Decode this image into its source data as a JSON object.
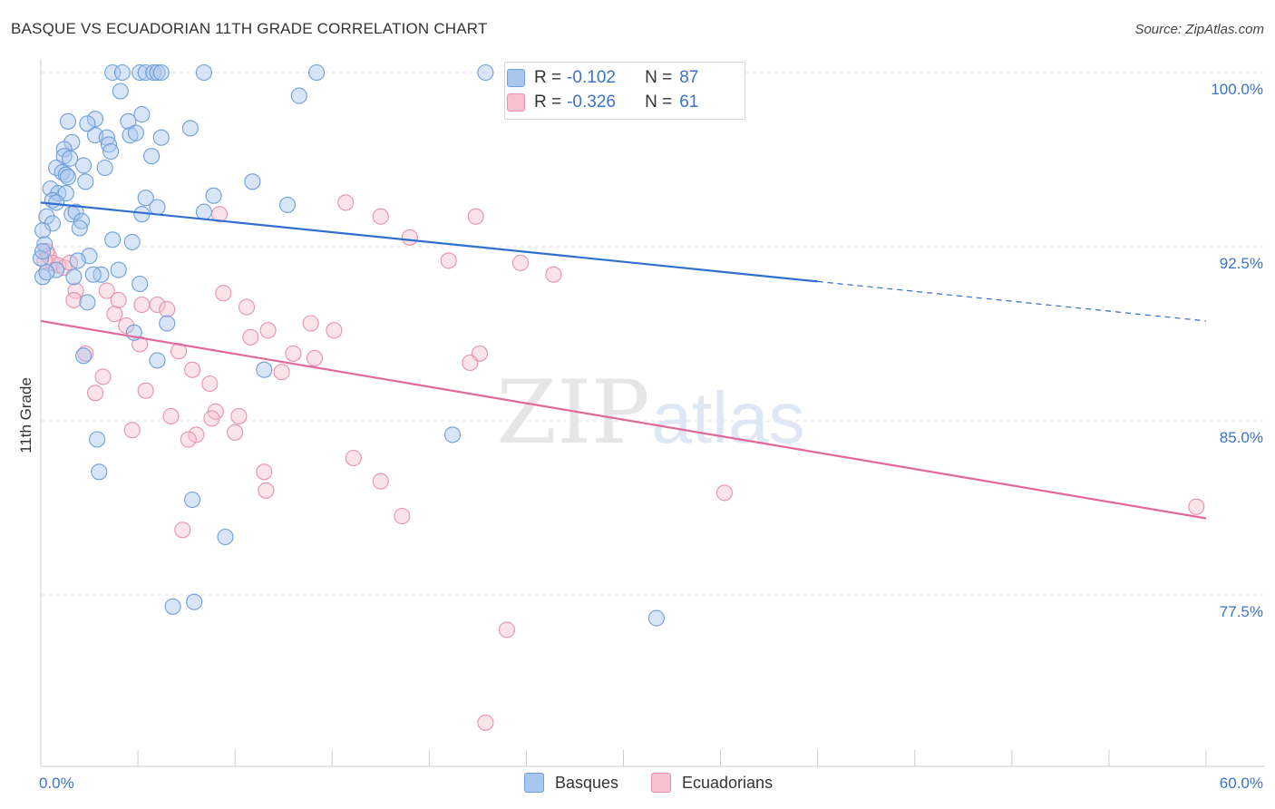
{
  "title": "BASQUE VS ECUADORIAN 11TH GRADE CORRELATION CHART",
  "source": "Source: ZipAtlas.com",
  "watermark": {
    "zip": "ZIP",
    "atlas": "atlas"
  },
  "colors": {
    "basque_fill": "#a9c6ee",
    "basque_stroke": "#6f9fdc",
    "basque_line": "#2f6fcf",
    "ecuador_fill": "#f6c0d0",
    "ecuador_stroke": "#e991ae",
    "ecuador_line": "#e2689a",
    "axis_label": "#3b73c8"
  },
  "legend_top": {
    "rows": [
      {
        "r_label": "R =",
        "r_value": "-0.102",
        "n_label": "N =",
        "n_value": "87",
        "series": "basque"
      },
      {
        "r_label": "R =",
        "r_value": "-0.326",
        "n_label": "N =",
        "n_value": "61",
        "series": "ecuador"
      }
    ]
  },
  "legend_bottom": {
    "items": [
      {
        "label": "Basques",
        "series": "basque"
      },
      {
        "label": "Ecuadorians",
        "series": "ecuador"
      }
    ]
  },
  "chart_data": {
    "type": "scatter",
    "title": "BASQUE VS ECUADORIAN 11TH GRADE CORRELATION CHART",
    "xlabel": "",
    "ylabel": "11th Grade",
    "xlim": [
      0,
      60
    ],
    "ylim": [
      70,
      100.8
    ],
    "x_tick_labels": [
      {
        "value": 0,
        "label": "0.0%"
      },
      {
        "value": 60,
        "label": "60.0%"
      }
    ],
    "y_tick_labels": [
      {
        "value": 100,
        "label": "100.0%"
      },
      {
        "value": 92.5,
        "label": "92.5%"
      },
      {
        "value": 85,
        "label": "85.0%"
      },
      {
        "value": 77.5,
        "label": "77.5%"
      }
    ],
    "grid": true,
    "legend_position": "top-center",
    "series": [
      {
        "name": "Basques",
        "key": "basque",
        "trend": {
          "x0": 0,
          "y0": 94.4,
          "x1": 40,
          "y1": 91.0,
          "x_dash_end": 60,
          "y_dash_end": 89.3
        },
        "points": [
          [
            3.7,
            100
          ],
          [
            4.2,
            100
          ],
          [
            5.1,
            100
          ],
          [
            5.4,
            100
          ],
          [
            5.8,
            100
          ],
          [
            6.0,
            100
          ],
          [
            6.2,
            100
          ],
          [
            8.4,
            100
          ],
          [
            14.2,
            100
          ],
          [
            22.9,
            100
          ],
          [
            33.5,
            100
          ],
          [
            35.4,
            100
          ],
          [
            4.1,
            99.2
          ],
          [
            13.3,
            99.0
          ],
          [
            5.2,
            98.2
          ],
          [
            2.8,
            98.0
          ],
          [
            1.4,
            97.9
          ],
          [
            2.4,
            97.8
          ],
          [
            4.5,
            97.9
          ],
          [
            7.7,
            97.6
          ],
          [
            2.8,
            97.3
          ],
          [
            3.4,
            97.2
          ],
          [
            4.6,
            97.3
          ],
          [
            4.9,
            97.4
          ],
          [
            6.2,
            97.2
          ],
          [
            1.6,
            97.0
          ],
          [
            1.2,
            96.7
          ],
          [
            3.5,
            96.9
          ],
          [
            3.6,
            96.6
          ],
          [
            1.2,
            96.4
          ],
          [
            1.5,
            96.3
          ],
          [
            5.7,
            96.4
          ],
          [
            2.2,
            96.0
          ],
          [
            0.8,
            95.9
          ],
          [
            1.1,
            95.7
          ],
          [
            1.3,
            95.6
          ],
          [
            1.4,
            95.5
          ],
          [
            3.3,
            95.9
          ],
          [
            2.3,
            95.3
          ],
          [
            10.9,
            95.3
          ],
          [
            0.5,
            95.0
          ],
          [
            0.9,
            94.8
          ],
          [
            0.6,
            94.5
          ],
          [
            1.3,
            94.8
          ],
          [
            0.8,
            94.4
          ],
          [
            5.4,
            94.6
          ],
          [
            8.9,
            94.7
          ],
          [
            12.7,
            94.3
          ],
          [
            6.0,
            94.2
          ],
          [
            8.4,
            94.0
          ],
          [
            5.2,
            93.9
          ],
          [
            1.6,
            93.9
          ],
          [
            1.8,
            94.0
          ],
          [
            0.3,
            93.8
          ],
          [
            0.6,
            93.5
          ],
          [
            2.1,
            93.6
          ],
          [
            0.1,
            93.2
          ],
          [
            2.0,
            93.3
          ],
          [
            4.7,
            92.7
          ],
          [
            2.5,
            92.1
          ],
          [
            1.9,
            91.9
          ],
          [
            0.8,
            91.5
          ],
          [
            4.0,
            91.5
          ],
          [
            3.1,
            91.3
          ],
          [
            1.7,
            91.2
          ],
          [
            2.7,
            91.3
          ],
          [
            5.1,
            90.9
          ],
          [
            0.1,
            91.2
          ],
          [
            2.4,
            90.1
          ],
          [
            6.5,
            89.2
          ],
          [
            4.8,
            88.8
          ],
          [
            6.0,
            87.6
          ],
          [
            2.2,
            87.8
          ],
          [
            11.5,
            87.2
          ],
          [
            21.2,
            84.4
          ],
          [
            2.9,
            84.2
          ],
          [
            3.0,
            82.8
          ],
          [
            7.8,
            81.6
          ],
          [
            9.5,
            80.0
          ],
          [
            6.8,
            77.0
          ],
          [
            7.9,
            77.2
          ],
          [
            31.7,
            76.5
          ],
          [
            0.0,
            92.0
          ],
          [
            0.2,
            92.6
          ],
          [
            0.1,
            92.3
          ],
          [
            0.3,
            91.4
          ],
          [
            3.7,
            92.8
          ]
        ]
      },
      {
        "name": "Ecuadorians",
        "key": "ecuador",
        "trend": {
          "x0": 0,
          "y0": 89.3,
          "x1": 60,
          "y1": 80.8
        },
        "points": [
          [
            0.3,
            92.3
          ],
          [
            0.4,
            92.1
          ],
          [
            0.6,
            91.8
          ],
          [
            0.9,
            91.7
          ],
          [
            1.2,
            91.6
          ],
          [
            1.5,
            91.8
          ],
          [
            0.2,
            91.9
          ],
          [
            15.7,
            94.4
          ],
          [
            9.2,
            93.9
          ],
          [
            17.5,
            93.8
          ],
          [
            22.4,
            93.8
          ],
          [
            19.0,
            92.9
          ],
          [
            21.0,
            91.9
          ],
          [
            24.7,
            91.8
          ],
          [
            26.4,
            91.3
          ],
          [
            1.8,
            90.6
          ],
          [
            3.4,
            90.6
          ],
          [
            1.7,
            90.2
          ],
          [
            4.0,
            90.2
          ],
          [
            5.2,
            90.0
          ],
          [
            6.0,
            90.0
          ],
          [
            6.5,
            89.8
          ],
          [
            9.4,
            90.5
          ],
          [
            10.6,
            89.9
          ],
          [
            3.8,
            89.6
          ],
          [
            4.4,
            89.1
          ],
          [
            13.9,
            89.2
          ],
          [
            11.7,
            88.9
          ],
          [
            10.8,
            88.6
          ],
          [
            15.1,
            88.9
          ],
          [
            5.1,
            88.3
          ],
          [
            7.1,
            88.0
          ],
          [
            2.3,
            87.9
          ],
          [
            13.0,
            87.9
          ],
          [
            14.1,
            87.7
          ],
          [
            22.6,
            87.9
          ],
          [
            22.1,
            87.5
          ],
          [
            7.8,
            87.2
          ],
          [
            12.4,
            87.1
          ],
          [
            3.2,
            86.9
          ],
          [
            8.7,
            86.6
          ],
          [
            5.4,
            86.3
          ],
          [
            2.8,
            86.2
          ],
          [
            9.0,
            85.4
          ],
          [
            8.8,
            85.1
          ],
          [
            10.2,
            85.2
          ],
          [
            6.7,
            85.2
          ],
          [
            4.7,
            84.6
          ],
          [
            8.0,
            84.4
          ],
          [
            7.6,
            84.2
          ],
          [
            10.0,
            84.5
          ],
          [
            16.1,
            83.4
          ],
          [
            11.5,
            82.8
          ],
          [
            17.5,
            82.4
          ],
          [
            11.6,
            82.0
          ],
          [
            18.6,
            80.9
          ],
          [
            35.2,
            81.9
          ],
          [
            59.5,
            81.3
          ],
          [
            7.3,
            80.3
          ],
          [
            24.0,
            76.0
          ],
          [
            22.9,
            72.0
          ]
        ]
      }
    ]
  }
}
